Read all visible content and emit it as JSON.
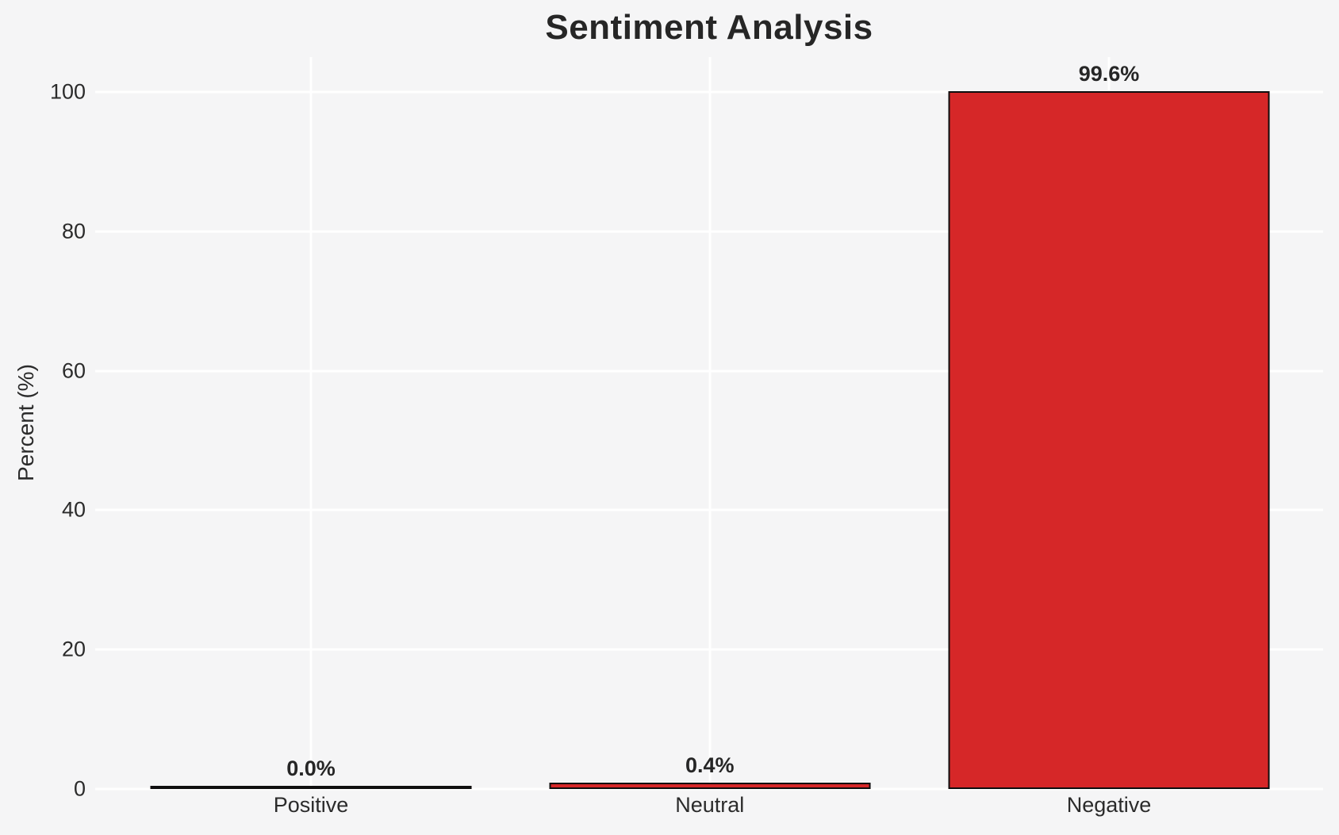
{
  "chart_data": {
    "type": "bar",
    "title": "Sentiment Analysis",
    "xlabel": "",
    "ylabel": "Percent (%)",
    "categories": [
      "Positive",
      "Neutral",
      "Negative"
    ],
    "values": [
      0.0,
      0.4,
      99.6
    ],
    "value_labels": [
      "0.0%",
      "0.4%",
      "99.6%"
    ],
    "yticks": [
      100,
      80,
      60,
      40,
      20,
      0
    ],
    "ytick_labels": [
      "100",
      "80",
      "60",
      "40",
      "20",
      "0"
    ],
    "ylim": [
      0,
      105
    ],
    "grid": "on",
    "legend_position": "none",
    "colors": {
      "bar_fill": "#d62728",
      "bar_edge": "#0f0f0f",
      "background": "#f5f5f6",
      "gridline": "#ffffff",
      "text": "#2b2b2b"
    }
  }
}
